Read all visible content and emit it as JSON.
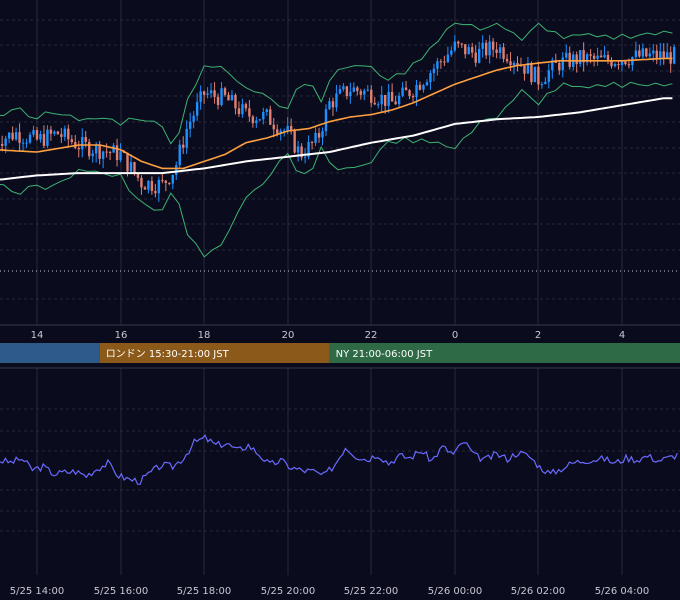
{
  "colors": {
    "background": "#0b0b1e",
    "grid": "#2a2a3c",
    "candle_up": "#1e90ff",
    "candle_down": "#e08070",
    "ma_fast": "#ffa040",
    "ma_slow": "#ffffff",
    "bollinger": "#3cb371",
    "oscillator": "#6a6aff",
    "session_tokyo": "#2e5a8a",
    "session_london": "#8b5a1a",
    "session_ny": "#2e6a46"
  },
  "chart_data": {
    "type": "line",
    "instrument": "candlestick price chart with moving averages, Bollinger bands and oscillator",
    "upper_x_ticks": [
      "14",
      "16",
      "18",
      "20",
      "22",
      "0",
      "2",
      "4"
    ],
    "lower_x_ticks": [
      "5/25 14:00",
      "5/25 16:00",
      "5/25 18:00",
      "5/25 20:00",
      "5/25 22:00",
      "5/26 00:00",
      "5/26 02:00",
      "5/26 04:00"
    ],
    "sessions": [
      {
        "label": "",
        "start_hour": 13,
        "end_hour": 15.5,
        "color_key": "session_tokyo"
      },
      {
        "label": "ロンドン 15:30-21:00 JST",
        "start_hour": 15.5,
        "end_hour": 21,
        "color_key": "session_london"
      },
      {
        "label": "NY 21:00-06:00 JST",
        "start_hour": 21,
        "end_hour": 30,
        "color_key": "session_ny"
      }
    ],
    "series": [
      {
        "type": "candlestick",
        "x": "time (hours, JST)",
        "trend_points": [
          [
            13.0,
            0.52
          ],
          [
            13.5,
            0.55
          ],
          [
            14.0,
            0.52
          ],
          [
            14.5,
            0.55
          ],
          [
            15.0,
            0.5
          ],
          [
            15.5,
            0.48
          ],
          [
            16.0,
            0.46
          ],
          [
            16.5,
            0.34
          ],
          [
            17.0,
            0.33
          ],
          [
            17.3,
            0.4
          ],
          [
            17.6,
            0.58
          ],
          [
            18.0,
            0.72
          ],
          [
            18.5,
            0.7
          ],
          [
            19.0,
            0.63
          ],
          [
            19.5,
            0.62
          ],
          [
            20.0,
            0.55
          ],
          [
            20.3,
            0.46
          ],
          [
            20.7,
            0.52
          ],
          [
            21.0,
            0.68
          ],
          [
            21.5,
            0.74
          ],
          [
            22.0,
            0.72
          ],
          [
            22.5,
            0.68
          ],
          [
            23.0,
            0.74
          ],
          [
            23.5,
            0.83
          ],
          [
            24.0,
            0.92
          ],
          [
            24.5,
            0.89
          ],
          [
            25.0,
            0.92
          ],
          [
            25.5,
            0.86
          ],
          [
            26.0,
            0.78
          ],
          [
            26.5,
            0.85
          ],
          [
            27.0,
            0.87
          ],
          [
            27.5,
            0.86
          ],
          [
            28.0,
            0.87
          ],
          [
            28.5,
            0.88
          ],
          [
            29.0,
            0.88
          ]
        ]
      },
      {
        "name": "",
        "type": "moving_average_fast",
        "points": [
          [
            13.0,
            0.48
          ],
          [
            14.0,
            0.47
          ],
          [
            15.0,
            0.5
          ],
          [
            15.5,
            0.5
          ],
          [
            16.0,
            0.48
          ],
          [
            16.5,
            0.43
          ],
          [
            17.0,
            0.4
          ],
          [
            17.5,
            0.4
          ],
          [
            18.0,
            0.43
          ],
          [
            18.5,
            0.46
          ],
          [
            19.0,
            0.51
          ],
          [
            19.5,
            0.53
          ],
          [
            20.0,
            0.56
          ],
          [
            20.5,
            0.57
          ],
          [
            21.0,
            0.6
          ],
          [
            21.5,
            0.62
          ],
          [
            22.0,
            0.63
          ],
          [
            22.5,
            0.65
          ],
          [
            23.0,
            0.68
          ],
          [
            23.5,
            0.72
          ],
          [
            24.0,
            0.76
          ],
          [
            24.5,
            0.79
          ],
          [
            25.0,
            0.82
          ],
          [
            25.5,
            0.84
          ],
          [
            26.0,
            0.85
          ],
          [
            26.5,
            0.86
          ],
          [
            27.0,
            0.86
          ],
          [
            28.0,
            0.86
          ],
          [
            29.0,
            0.87
          ]
        ]
      },
      {
        "name": "",
        "type": "moving_average_slow",
        "points": [
          [
            13.0,
            0.35
          ],
          [
            14.0,
            0.37
          ],
          [
            15.0,
            0.38
          ],
          [
            16.0,
            0.38
          ],
          [
            17.0,
            0.38
          ],
          [
            18.0,
            0.4
          ],
          [
            19.0,
            0.43
          ],
          [
            20.0,
            0.45
          ],
          [
            21.0,
            0.47
          ],
          [
            22.0,
            0.51
          ],
          [
            23.0,
            0.54
          ],
          [
            24.0,
            0.59
          ],
          [
            25.0,
            0.61
          ],
          [
            26.0,
            0.62
          ],
          [
            27.0,
            0.64
          ],
          [
            28.0,
            0.67
          ],
          [
            29.0,
            0.7
          ]
        ]
      }
    ],
    "oscillator": {
      "values": [
        0.55,
        0.53,
        0.57,
        0.45,
        0.48,
        0.4,
        0.42,
        0.43,
        0.38,
        0.46,
        0.52,
        0.38,
        0.34,
        0.32,
        0.42,
        0.5,
        0.48,
        0.58,
        0.75,
        0.8,
        0.72,
        0.74,
        0.66,
        0.72,
        0.62,
        0.5,
        0.55,
        0.47,
        0.44,
        0.43,
        0.38,
        0.5,
        0.7,
        0.6,
        0.56,
        0.62,
        0.52,
        0.6,
        0.58,
        0.66,
        0.55,
        0.7,
        0.62,
        0.76,
        0.6,
        0.56,
        0.62,
        0.57,
        0.64,
        0.6,
        0.48,
        0.4,
        0.46,
        0.52,
        0.55,
        0.56,
        0.57,
        0.52,
        0.58,
        0.56,
        0.6,
        0.55,
        0.58,
        0.63
      ]
    },
    "grid": true
  }
}
